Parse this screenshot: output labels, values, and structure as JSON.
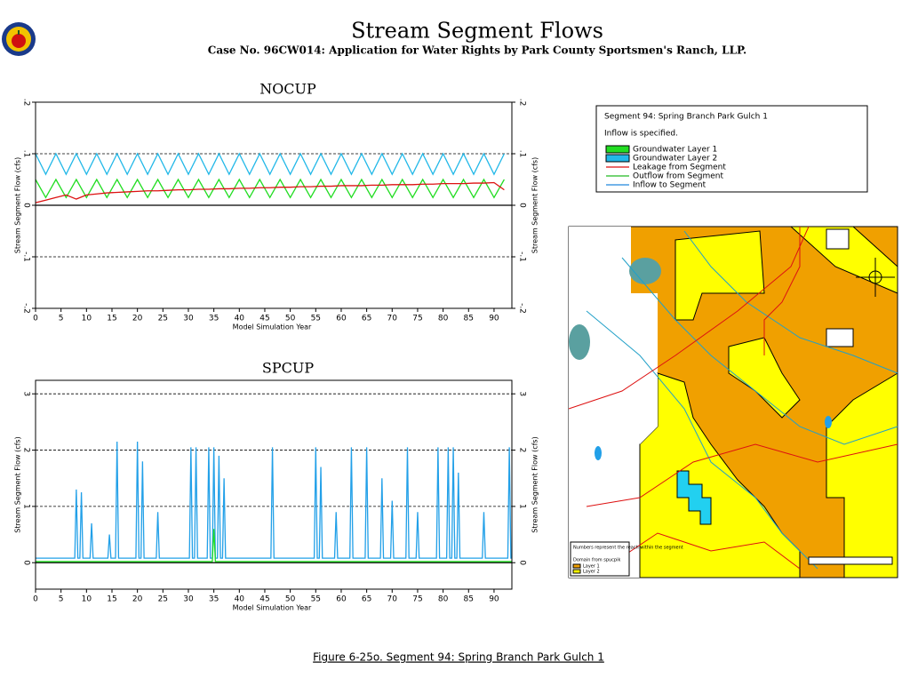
{
  "header": {
    "title": "Stream Segment Flows",
    "subtitle": "Case No. 96CW014: Application for Water Rights by Park County Sportsmen's Ranch, LLP.",
    "caption": "Figure 6-25o.  Segment 94: Spring Branch Park Gulch 1"
  },
  "legend": {
    "title": "Segment 94: Spring Branch Park Gulch 1",
    "note": "Inflow is specified.",
    "entries": [
      {
        "name": "Groundwater Layer 1",
        "color": "#22dd22",
        "kind": "box"
      },
      {
        "name": "Groundwater Layer 2",
        "color": "#22b8e8",
        "kind": "box"
      },
      {
        "name": "Leakage from Segment",
        "color": "#dd1111",
        "kind": "line"
      },
      {
        "name": "Outflow from Segment",
        "color": "#22bb22",
        "kind": "line"
      },
      {
        "name": "Inflow to Segment",
        "color": "#2288dd",
        "kind": "line"
      }
    ]
  },
  "map": {
    "note": "Numbers represent the reach within the segment",
    "domain": "Domain from spucpik",
    "layers": [
      "Layer 1",
      "Layer 2"
    ]
  },
  "chart_data": [
    {
      "type": "line",
      "title": "NOCUP",
      "ylabel": "Stream Segment Flow (cfs)",
      "xlabel": "Model Simulation Year",
      "xlim": [
        0,
        93.5
      ],
      "xticks": [
        0,
        5,
        10,
        15,
        20,
        25,
        30,
        35,
        40,
        45,
        50,
        55,
        60,
        65,
        70,
        75,
        80,
        85,
        90
      ],
      "ylim": [
        -0.2,
        0.2
      ],
      "yticks": [
        {
          "value": -0.2,
          "label": "-.2"
        },
        {
          "value": -0.1,
          "label": "-.1"
        },
        0,
        {
          "value": 0.1,
          "label": ".1"
        },
        {
          "value": 0.2,
          "label": ".2"
        }
      ],
      "grid": "dashed",
      "x": [
        0,
        2,
        4,
        6,
        8,
        10,
        12,
        14,
        16,
        18,
        20,
        22,
        24,
        26,
        28,
        30,
        32,
        34,
        36,
        38,
        40,
        42,
        44,
        46,
        48,
        50,
        52,
        54,
        56,
        58,
        60,
        62,
        64,
        66,
        68,
        70,
        72,
        74,
        76,
        78,
        80,
        82,
        84,
        86,
        88,
        90,
        92
      ],
      "series": [
        {
          "name": "Groundwater Layer 1",
          "color": "#22dd22",
          "values": [
            0.05,
            0.015,
            0.05,
            0.015,
            0.05,
            0.015,
            0.05,
            0.015,
            0.05,
            0.015,
            0.05,
            0.015,
            0.05,
            0.015,
            0.05,
            0.015,
            0.05,
            0.015,
            0.05,
            0.015,
            0.05,
            0.015,
            0.05,
            0.015,
            0.05,
            0.015,
            0.05,
            0.015,
            0.05,
            0.015,
            0.05,
            0.015,
            0.05,
            0.015,
            0.05,
            0.015,
            0.05,
            0.015,
            0.05,
            0.015,
            0.05,
            0.015,
            0.05,
            0.015,
            0.05,
            0.015,
            0.05
          ]
        },
        {
          "name": "Groundwater Layer 2",
          "color": "#22b8e8",
          "values": [
            0.1,
            0.06,
            0.1,
            0.06,
            0.1,
            0.06,
            0.1,
            0.06,
            0.1,
            0.06,
            0.1,
            0.06,
            0.1,
            0.06,
            0.1,
            0.06,
            0.1,
            0.06,
            0.1,
            0.06,
            0.1,
            0.06,
            0.1,
            0.06,
            0.1,
            0.06,
            0.1,
            0.06,
            0.1,
            0.06,
            0.1,
            0.06,
            0.1,
            0.06,
            0.1,
            0.06,
            0.1,
            0.06,
            0.1,
            0.06,
            0.1,
            0.06,
            0.1,
            0.06,
            0.1,
            0.06,
            0.1
          ]
        },
        {
          "name": "Leakage from Segment",
          "color": "#dd1111",
          "values": [
            0.005,
            0.01,
            0.015,
            0.02,
            0.012,
            0.02,
            0.022,
            0.024,
            0.025,
            0.026,
            0.027,
            0.028,
            0.028,
            0.029,
            0.03,
            0.03,
            0.031,
            0.031,
            0.032,
            0.032,
            0.033,
            0.033,
            0.034,
            0.034,
            0.035,
            0.035,
            0.036,
            0.036,
            0.037,
            0.037,
            0.038,
            0.038,
            0.038,
            0.039,
            0.039,
            0.04,
            0.04,
            0.04,
            0.041,
            0.041,
            0.042,
            0.042,
            0.042,
            0.043,
            0.043,
            0.044,
            0.03
          ]
        }
      ]
    },
    {
      "type": "line",
      "title": "SPCUP",
      "ylabel": "Stream Segment Flow (cfs)",
      "xlabel": "Model Simulation Year",
      "xlim": [
        0,
        93.5
      ],
      "xticks": [
        0,
        5,
        10,
        15,
        20,
        25,
        30,
        35,
        40,
        45,
        50,
        55,
        60,
        65,
        70,
        75,
        80,
        85,
        90
      ],
      "ylim": [
        -0.47,
        3.24
      ],
      "yticks": [
        0,
        1,
        2,
        3
      ],
      "grid": "dashed",
      "series": [
        {
          "name": "Groundwater Layer 2",
          "color": "#22a0e8",
          "x": [
            0,
            7.7,
            8,
            8.3,
            8.7,
            9,
            9.3,
            10.7,
            11,
            11.3,
            14.2,
            14.5,
            14.8,
            15.7,
            16,
            16.3,
            19.7,
            20,
            20.3,
            20.7,
            21,
            21.3,
            23.7,
            24,
            24.3,
            30.2,
            30.5,
            30.8,
            31.2,
            31.5,
            31.8,
            33.7,
            34,
            34.3,
            34.7,
            35,
            35.3,
            35.7,
            36,
            36.3,
            36.7,
            37,
            37.3,
            46.2,
            46.5,
            46.8,
            54.7,
            55,
            55.3,
            55.7,
            56,
            56.3,
            58.7,
            59,
            59.3,
            61.7,
            62,
            62.3,
            64.7,
            65,
            65.3,
            67.7,
            68,
            68.3,
            69.7,
            70,
            70.3,
            72.7,
            73,
            73.3,
            74.7,
            75,
            75.3,
            78.7,
            79,
            79.3,
            80.7,
            81,
            81.3,
            81.7,
            82,
            82.3,
            82.7,
            83,
            83.3,
            87.7,
            88,
            88.3,
            92.7,
            93,
            93.3,
            93.5
          ],
          "values": [
            0.08,
            0.08,
            1.3,
            0.08,
            0.08,
            1.25,
            0.08,
            0.08,
            0.7,
            0.08,
            0.08,
            0.5,
            0.08,
            0.08,
            2.15,
            0.08,
            0.08,
            2.15,
            0.08,
            0.08,
            1.8,
            0.08,
            0.08,
            0.9,
            0.08,
            0.08,
            2.05,
            0.08,
            0.08,
            2.05,
            0.08,
            0.08,
            2.05,
            0.08,
            0.08,
            2.05,
            0.08,
            0.08,
            1.9,
            0.08,
            0.08,
            1.5,
            0.08,
            0.08,
            2.05,
            0.08,
            0.08,
            2.05,
            0.08,
            0.08,
            1.7,
            0.08,
            0.08,
            0.9,
            0.08,
            0.08,
            2.05,
            0.08,
            0.08,
            2.05,
            0.08,
            0.08,
            1.5,
            0.08,
            0.08,
            1.1,
            0.08,
            0.08,
            2.05,
            0.08,
            0.08,
            0.9,
            0.08,
            0.08,
            2.05,
            0.08,
            0.08,
            2.05,
            0.08,
            0.08,
            2.05,
            0.08,
            0.08,
            1.6,
            0.08,
            0.08,
            0.9,
            0.08,
            0.08,
            2.05,
            0.08,
            0.08
          ]
        },
        {
          "name": "Groundwater Layer 1",
          "color": "#22dd22",
          "x": [
            0,
            34.7,
            35,
            35.3,
            93.5
          ],
          "values": [
            0.02,
            0.02,
            0.6,
            0.02,
            0.02
          ]
        }
      ]
    }
  ]
}
